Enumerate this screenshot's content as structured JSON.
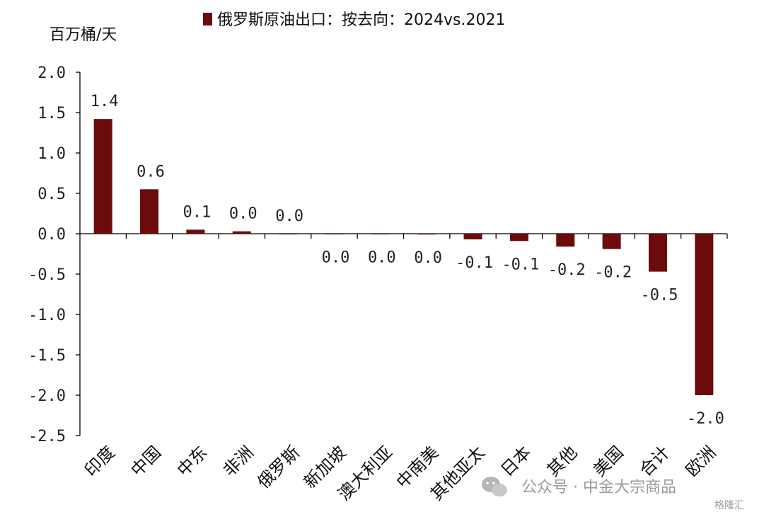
{
  "chart_data": {
    "type": "bar",
    "title": "",
    "ylabel": "百万桶/天",
    "xlabel": "",
    "legend": "俄罗斯原油出口：按去向：2024vs.2021",
    "legend_position": "top",
    "ylim": [
      -2.5,
      2.0
    ],
    "yticks": [
      "2.0",
      "1.5",
      "1.0",
      "0.5",
      "0.0",
      "-0.5",
      "-1.0",
      "-1.5",
      "-2.0",
      "-2.5"
    ],
    "grid": false,
    "categories": [
      "印度",
      "中国",
      "中东",
      "非洲",
      "俄罗斯",
      "新加坡",
      "澳大利亚",
      "中南美",
      "其他亚太",
      "日本",
      "其他",
      "美国",
      "合计",
      "欧洲"
    ],
    "series": [
      {
        "name": "俄罗斯原油出口：按去向：2024vs.2021",
        "values": [
          1.42,
          0.55,
          0.05,
          0.03,
          0.0,
          -0.005,
          -0.005,
          -0.01,
          -0.07,
          -0.09,
          -0.16,
          -0.19,
          -0.47,
          -2.0
        ],
        "labels": [
          "1.4",
          "0.6",
          "0.1",
          "0.0",
          "0.0",
          "0.0",
          "0.0",
          "0.0",
          "-0.1",
          "-0.1",
          "-0.2",
          "-0.2",
          "-0.5",
          "-2.0"
        ],
        "color": "#6b0b0b"
      }
    ]
  },
  "watermark": {
    "text": "公众号 · 中金大宗商品",
    "corner": "格隆汇"
  }
}
